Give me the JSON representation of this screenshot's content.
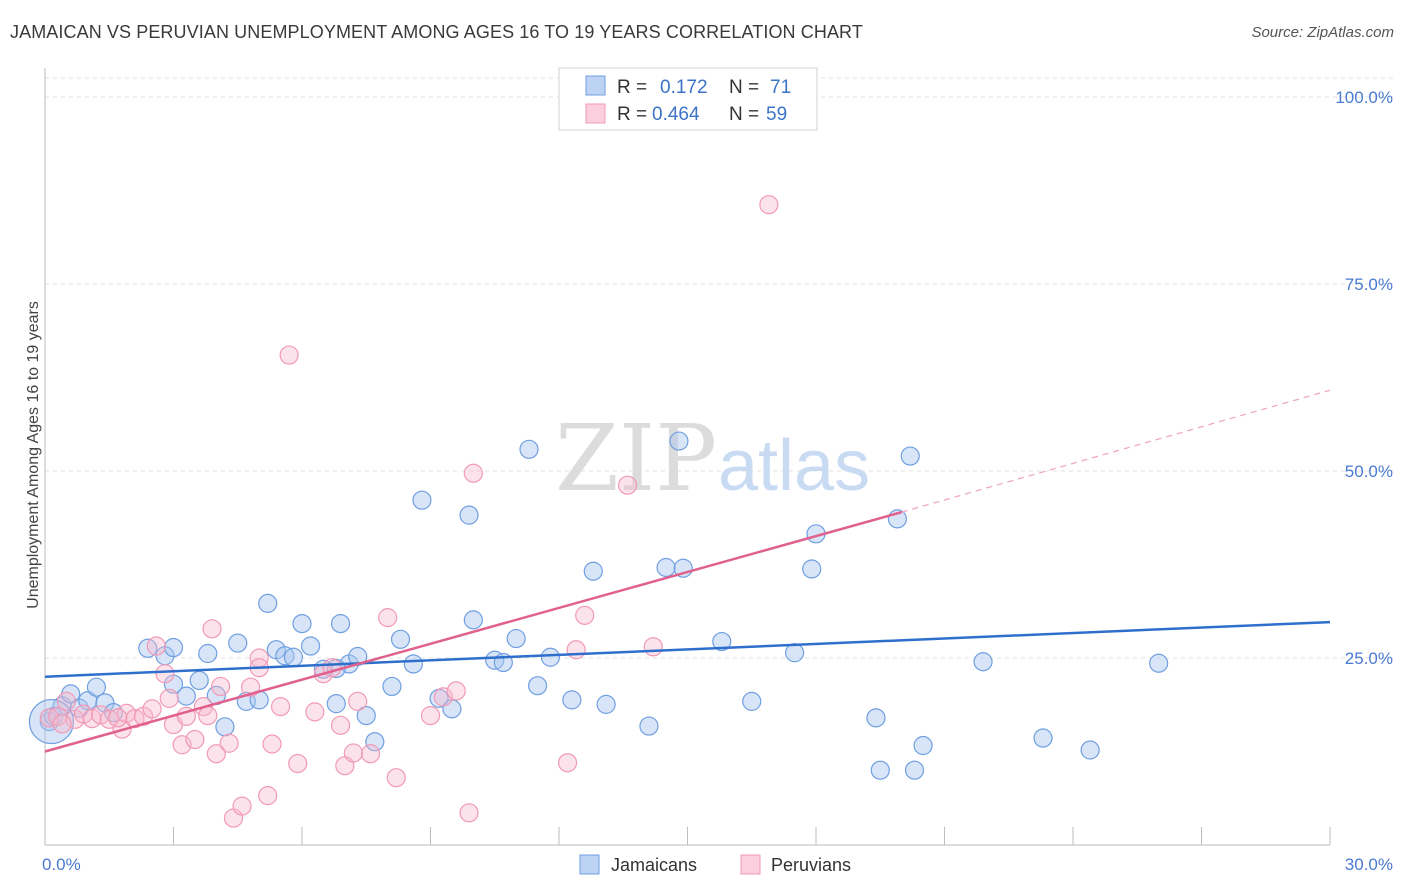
{
  "title": "JAMAICAN VS PERUVIAN UNEMPLOYMENT AMONG AGES 16 TO 19 YEARS CORRELATION CHART",
  "source": "Source: ZipAtlas.com",
  "watermark": {
    "zip": "ZIP",
    "atlas": "atlas"
  },
  "colors": {
    "jamaicans": "#6f9fe0",
    "peruvians": "#f19ab5",
    "jam_line": "#2f6fcc",
    "per_line": "#e0608e"
  },
  "chart_data": {
    "type": "scatter",
    "title": "JAMAICAN VS PERUVIAN UNEMPLOYMENT AMONG AGES 16 TO 19 YEARS CORRELATION CHART",
    "xlabel": "",
    "ylabel": "Unemployment Among Ages 16 to 19 years",
    "xlim": [
      0,
      30
    ],
    "ylim": [
      0,
      100
    ],
    "x_tick_labels": [
      "0.0%",
      "30.0%"
    ],
    "y_ticks": [
      25,
      50,
      75,
      100
    ],
    "y_tick_labels": [
      "25.0%",
      "50.0%",
      "75.0%",
      "100.0%"
    ],
    "legend": {
      "rows": [
        {
          "r_label": "R =",
          "r_value": "0.172",
          "n_label": "N =",
          "n_value": "71"
        },
        {
          "r_label": "R =",
          "r_value": "0.464",
          "n_label": "N =",
          "n_value": "59"
        }
      ]
    },
    "bottom_legend": [
      "Jamaicans",
      "Peruvians"
    ],
    "series": [
      {
        "name": "Jamaicans",
        "r": 0.172,
        "n": 71,
        "trend": {
          "x0": 0,
          "y0": 22.5,
          "x1": 30,
          "y1": 29.8
        },
        "points": [
          [
            0.1,
            16.5
          ],
          [
            0.2,
            17.2
          ],
          [
            0.4,
            18.6
          ],
          [
            0.6,
            20.2
          ],
          [
            0.8,
            18.3
          ],
          [
            1.0,
            19.3
          ],
          [
            1.2,
            21.1
          ],
          [
            1.4,
            19.0
          ],
          [
            1.6,
            17.7
          ],
          [
            2.4,
            26.3
          ],
          [
            2.8,
            25.3
          ],
          [
            3.0,
            21.5
          ],
          [
            3.3,
            19.9
          ],
          [
            3.6,
            22.0
          ],
          [
            3.8,
            25.6
          ],
          [
            4.0,
            20.0
          ],
          [
            4.2,
            15.8
          ],
          [
            4.5,
            27.0
          ],
          [
            4.7,
            19.2
          ],
          [
            5.0,
            19.4
          ],
          [
            5.2,
            32.3
          ],
          [
            5.4,
            26.1
          ],
          [
            5.6,
            25.3
          ],
          [
            5.8,
            25.1
          ],
          [
            6.0,
            29.6
          ],
          [
            6.2,
            26.6
          ],
          [
            6.5,
            23.5
          ],
          [
            6.8,
            18.9
          ],
          [
            6.9,
            29.6
          ],
          [
            7.1,
            24.2
          ],
          [
            7.3,
            25.2
          ],
          [
            7.5,
            17.3
          ],
          [
            7.7,
            13.8
          ],
          [
            8.1,
            21.2
          ],
          [
            8.3,
            27.5
          ],
          [
            8.6,
            24.2
          ],
          [
            8.8,
            46.1
          ],
          [
            9.2,
            19.6
          ],
          [
            9.5,
            18.2
          ],
          [
            9.9,
            44.1
          ],
          [
            10.0,
            30.1
          ],
          [
            10.5,
            24.7
          ],
          [
            10.7,
            24.4
          ],
          [
            11.0,
            27.6
          ],
          [
            11.3,
            52.9
          ],
          [
            11.5,
            21.3
          ],
          [
            11.8,
            25.1
          ],
          [
            12.3,
            19.4
          ],
          [
            12.8,
            36.6
          ],
          [
            13.1,
            18.8
          ],
          [
            14.1,
            15.9
          ],
          [
            14.5,
            37.1
          ],
          [
            14.8,
            54.0
          ],
          [
            14.9,
            37.0
          ],
          [
            15.8,
            27.2
          ],
          [
            16.5,
            19.2
          ],
          [
            17.5,
            25.7
          ],
          [
            17.9,
            36.9
          ],
          [
            18.0,
            41.6
          ],
          [
            19.4,
            17.0
          ],
          [
            19.5,
            10.0
          ],
          [
            19.9,
            43.6
          ],
          [
            20.2,
            52.0
          ],
          [
            20.3,
            10.0
          ],
          [
            20.5,
            13.3
          ],
          [
            21.9,
            24.5
          ],
          [
            23.3,
            14.3
          ],
          [
            24.4,
            12.7
          ],
          [
            26.0,
            24.3
          ],
          [
            3.0,
            26.4
          ],
          [
            6.8,
            23.6
          ]
        ]
      },
      {
        "name": "Peruvians",
        "r": 0.464,
        "n": 59,
        "trend": {
          "x0": 0,
          "y0": 12.5,
          "x1": 20.0,
          "y1": 44.5,
          "x_dash_end": 30,
          "y_dash_end": 60.8
        },
        "points": [
          [
            0.1,
            17.0
          ],
          [
            0.3,
            17.2
          ],
          [
            0.5,
            19.2
          ],
          [
            0.7,
            16.8
          ],
          [
            0.9,
            17.5
          ],
          [
            1.1,
            16.9
          ],
          [
            1.3,
            17.4
          ],
          [
            1.5,
            16.8
          ],
          [
            1.8,
            15.5
          ],
          [
            1.9,
            17.6
          ],
          [
            2.1,
            16.9
          ],
          [
            2.3,
            17.2
          ],
          [
            2.5,
            18.2
          ],
          [
            2.6,
            26.6
          ],
          [
            2.8,
            22.9
          ],
          [
            2.9,
            19.6
          ],
          [
            3.0,
            16.1
          ],
          [
            3.2,
            13.4
          ],
          [
            3.3,
            17.2
          ],
          [
            3.5,
            14.1
          ],
          [
            3.7,
            18.5
          ],
          [
            3.8,
            17.3
          ],
          [
            3.9,
            28.9
          ],
          [
            4.0,
            12.2
          ],
          [
            4.1,
            21.2
          ],
          [
            4.3,
            13.6
          ],
          [
            4.4,
            3.6
          ],
          [
            4.6,
            5.2
          ],
          [
            4.8,
            21.1
          ],
          [
            5.0,
            25.0
          ],
          [
            5.0,
            23.7
          ],
          [
            5.2,
            6.6
          ],
          [
            5.3,
            13.5
          ],
          [
            5.5,
            18.5
          ],
          [
            5.7,
            65.5
          ],
          [
            5.9,
            10.9
          ],
          [
            6.3,
            17.8
          ],
          [
            6.5,
            22.9
          ],
          [
            6.7,
            23.7
          ],
          [
            6.9,
            16.0
          ],
          [
            7.0,
            10.6
          ],
          [
            7.2,
            12.3
          ],
          [
            7.3,
            19.2
          ],
          [
            7.6,
            12.2
          ],
          [
            8.0,
            30.4
          ],
          [
            8.2,
            9.0
          ],
          [
            9.0,
            17.3
          ],
          [
            9.3,
            19.8
          ],
          [
            9.6,
            20.6
          ],
          [
            9.9,
            4.3
          ],
          [
            10.0,
            49.7
          ],
          [
            12.2,
            11.0
          ],
          [
            12.4,
            26.1
          ],
          [
            12.6,
            30.7
          ],
          [
            13.6,
            48.1
          ],
          [
            14.2,
            26.5
          ],
          [
            16.9,
            85.6
          ],
          [
            0.4,
            16.2
          ],
          [
            1.7,
            17.0
          ]
        ]
      }
    ]
  }
}
